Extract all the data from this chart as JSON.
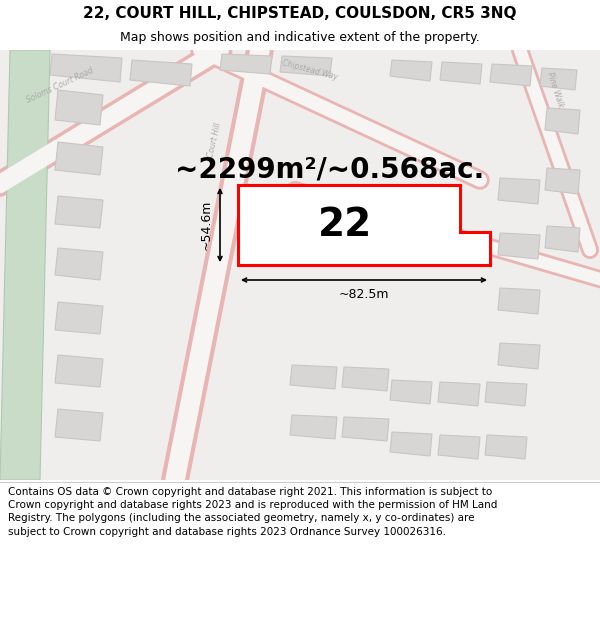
{
  "title": "22, COURT HILL, CHIPSTEAD, COULSDON, CR5 3NQ",
  "subtitle": "Map shows position and indicative extent of the property.",
  "footer": "Contains OS data © Crown copyright and database right 2021. This information is subject to Crown copyright and database rights 2023 and is reproduced with the permission of HM Land Registry. The polygons (including the associated geometry, namely x, y co-ordinates) are subject to Crown copyright and database rights 2023 Ordnance Survey 100026316.",
  "area_label": "~2299m²/~0.568ac.",
  "number_label": "22",
  "width_label": "~82.5m",
  "height_label": "~54.6m",
  "map_bg": "#f0eeec",
  "road_fill": "#f7f5f3",
  "road_edge": "#e8b4b4",
  "building_fc": "#d8d6d4",
  "building_ec": "#c8c6c4",
  "green_fc": "#c8dcc8",
  "green_ec": "#b0c8b0",
  "plot_fill": "#ffffff",
  "plot_edge": "#ff0000",
  "title_fs": 11,
  "subtitle_fs": 9,
  "area_fs": 20,
  "number_fs": 28,
  "dim_fs": 9,
  "footer_fs": 7.5,
  "road_label_fs": 5.5,
  "road_label_color": "#aaaaaa"
}
